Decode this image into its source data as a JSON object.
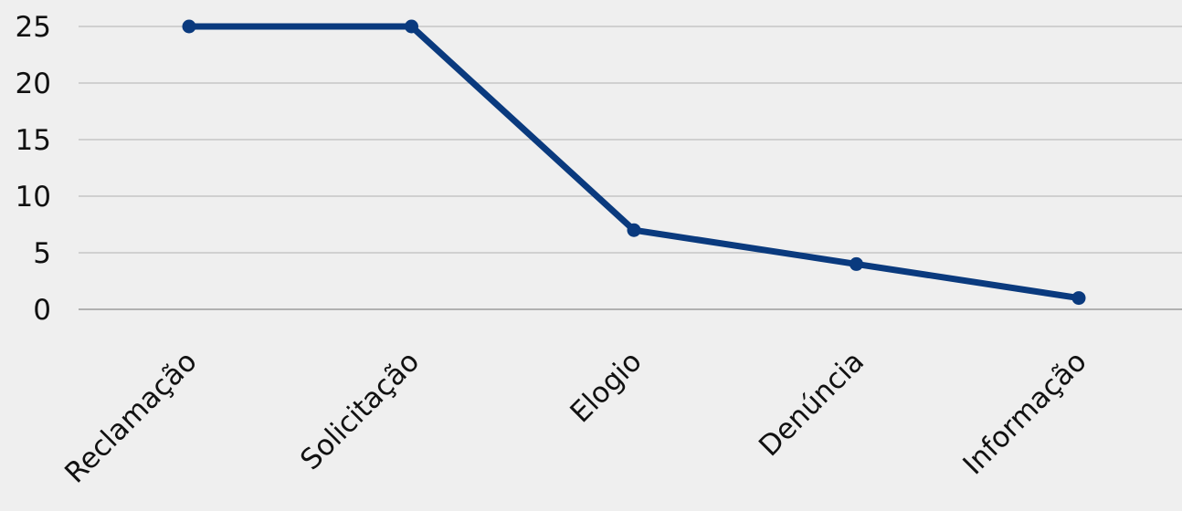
{
  "chart_data": {
    "type": "line",
    "title": "",
    "xlabel": "",
    "ylabel": "",
    "categories": [
      "Reclamação",
      "Solicitação",
      "Elogio",
      "Denúncia",
      "Informação"
    ],
    "series": [
      {
        "values": [
          25,
          25,
          7,
          4,
          1
        ]
      }
    ],
    "ylim": [
      0,
      25
    ],
    "yticks": [
      0,
      5,
      10,
      15,
      20,
      25
    ],
    "grid": true,
    "legend": "none"
  },
  "colors": {
    "line": "#0a3a7e",
    "grid": "#bdbdbd",
    "axis": "#8c8c8c",
    "background": "#efefef"
  }
}
